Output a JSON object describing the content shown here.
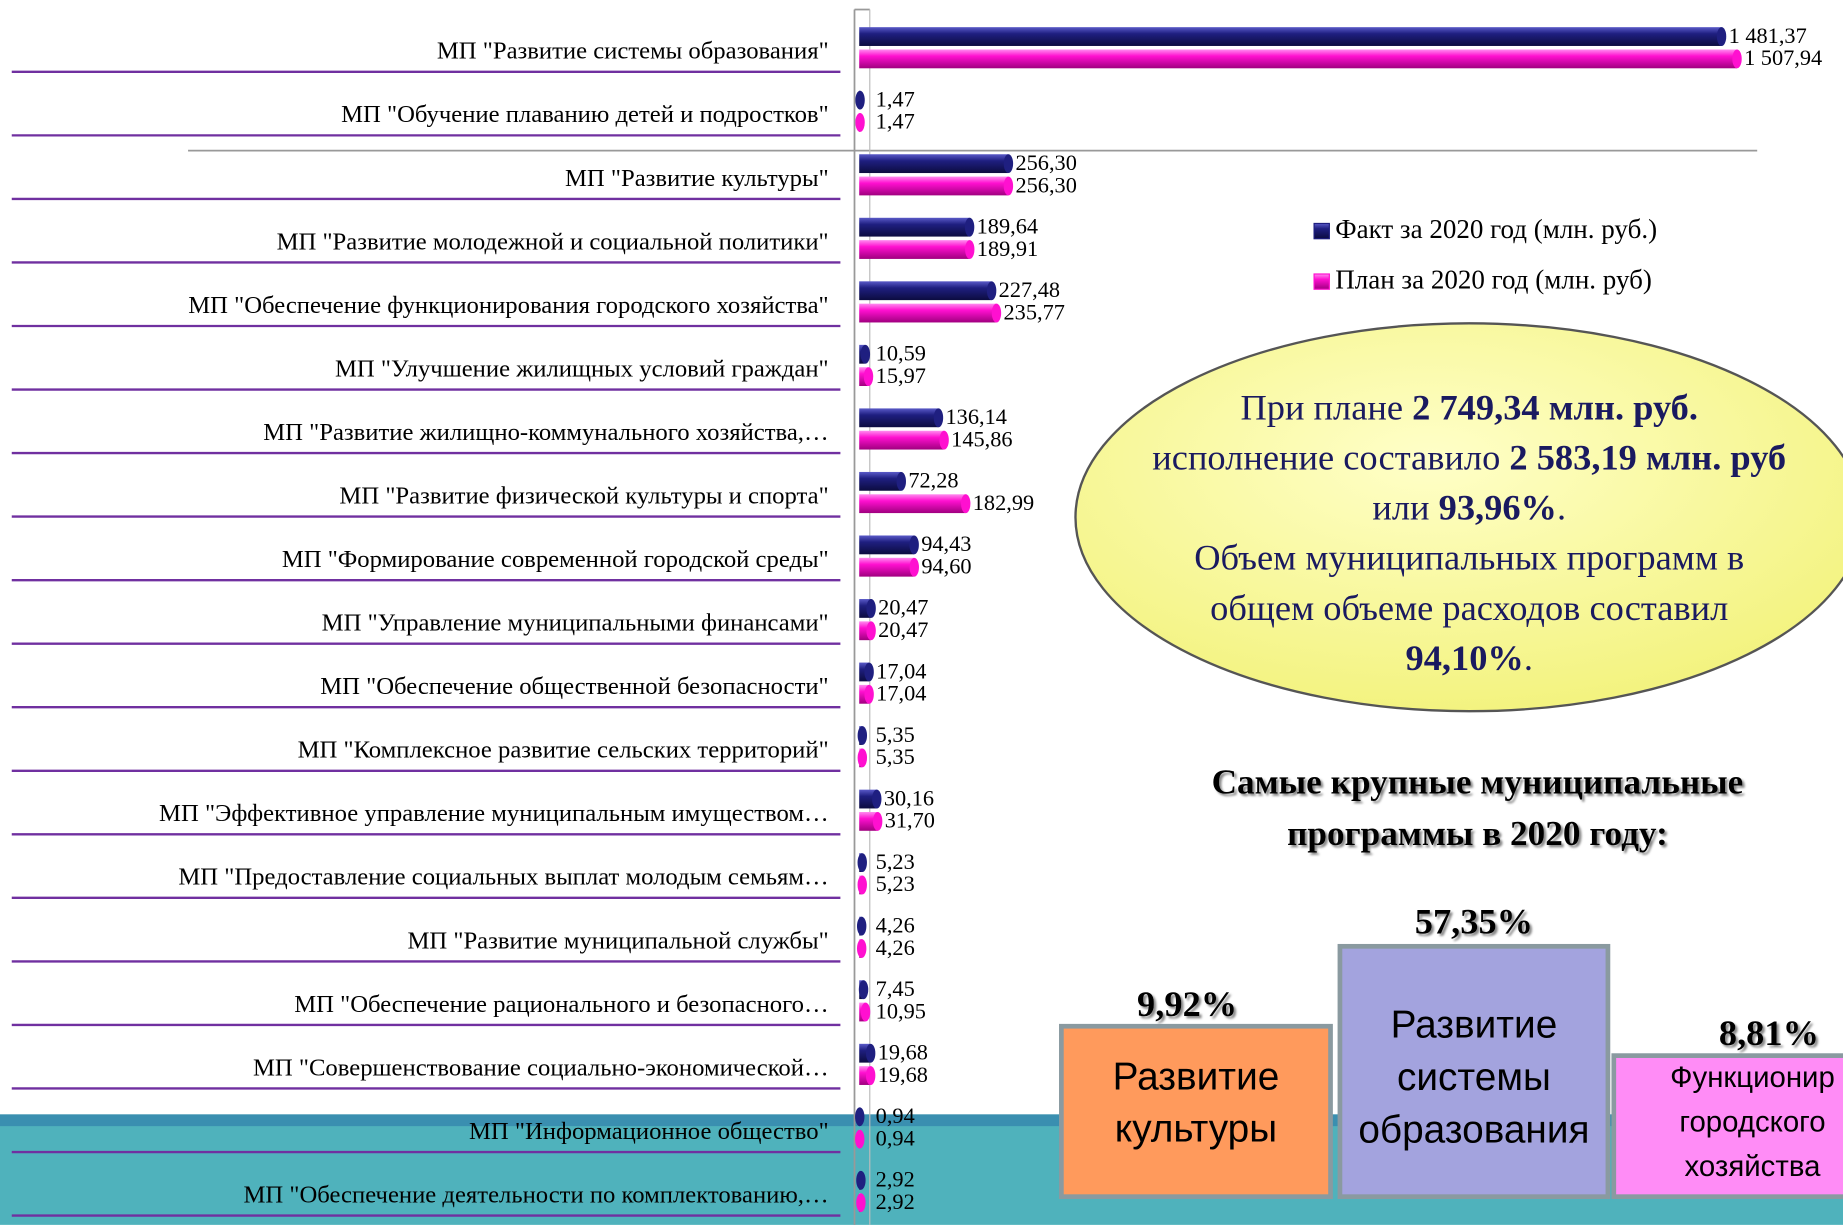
{
  "chart_data": {
    "type": "hbar",
    "categories": [
      "МП  \"Развитие системы образования\"",
      "МП \"Обучение плаванию детей и подростков\"",
      "МП \"Развитие культуры\"",
      "МП \"Развитие молодежной и социальной политики\"",
      "МП \"Обеспечение функционирования городского хозяйства\"",
      "МП \"Улучшение жилищных условий граждан\"",
      "МП     \"Развитие     жилищно-коммунального     хозяйства,…",
      "МП \"Развитие физической культуры и спорта\"",
      "МП \"Формирование современной городской среды\"",
      "МП \"Управление муниципальными финансами\"",
      "МП  \"Обеспечение общественной безопасности\"",
      "МП \"Комплексное развитие сельских территорий\"",
      "МП \"Эффективное управление муниципальным имуществом…",
      "МП \"Предоставление социальных выплат молодым семьям…",
      "МП \"Развитие муниципальной службы\"",
      "МП     \"Обеспечение     рационального     и     безопасного…",
      "МП     \"Совершенствование     социально-экономической…",
      "МП \"Информационное общество\"",
      "МП   \"Обеспечение   деятельности   по   комплектованию,…"
    ],
    "series": [
      {
        "name": "Факт за 2020 год (млн. руб.)",
        "color": "#1f1f80",
        "values": [
          1481.37,
          1.47,
          256.3,
          189.64,
          227.48,
          10.59,
          136.14,
          72.28,
          94.43,
          20.47,
          17.04,
          5.35,
          30.16,
          5.23,
          4.26,
          7.45,
          19.68,
          0.94,
          2.92
        ],
        "value_labels": [
          "1 481,37",
          "1,47",
          "256,30",
          "189,64",
          "227,48",
          "10,59",
          "136,14",
          "72,28",
          "94,43",
          "20,47",
          "17,04",
          "5,35",
          "30,16",
          "5,23",
          "4,26",
          "7,45",
          "19,68",
          "0,94",
          "2,92"
        ]
      },
      {
        "name": "План за 2020 год (млн. руб)",
        "color": "#ff10d0",
        "values": [
          1507.94,
          1.47,
          256.3,
          189.91,
          235.77,
          15.97,
          145.86,
          182.99,
          94.6,
          20.47,
          17.04,
          5.35,
          31.7,
          5.23,
          4.26,
          10.95,
          19.68,
          0.94,
          2.92
        ],
        "value_labels": [
          "1 507,94",
          "1,47",
          "256,30",
          "189,91",
          "235,77",
          "15,97",
          "145,86",
          "182,99",
          "94,60",
          "20,47",
          "17,04",
          "5,35",
          "31,70",
          "5,23",
          "4,26",
          "10,95",
          "19,68",
          "0,94",
          "2,92"
        ]
      }
    ],
    "xlim": [
      0,
      1690
    ]
  },
  "callout": {
    "lines": [
      [
        {
          "text": "При плане ",
          "bold": false
        },
        {
          "text": "2 749,34 млн. руб.",
          "bold": true
        }
      ],
      [
        {
          "text": "исполнение составило ",
          "bold": false
        },
        {
          "text": "2 583,19 млн. руб",
          "bold": true
        }
      ],
      [
        {
          "text": "или ",
          "bold": false
        },
        {
          "text": "93,96%",
          "bold": true
        },
        {
          "text": ".",
          "bold": false
        }
      ],
      [
        {
          "text": "Объем муниципальных программ в",
          "bold": false
        }
      ],
      [
        {
          "text": "общем объеме расходов составил",
          "bold": false
        }
      ],
      [
        {
          "text": "94,10%",
          "bold": true
        },
        {
          "text": ".",
          "bold": false
        }
      ]
    ]
  },
  "top_programs": {
    "title": [
      "Самые крупные муниципальные",
      "программы в 2020 году:"
    ],
    "items": [
      {
        "percent": "9,92%",
        "label": [
          "Развитие",
          "культуры"
        ]
      },
      {
        "percent": "57,35%",
        "label": [
          "Развитие",
          "системы",
          "образования"
        ]
      },
      {
        "percent": "8,81%",
        "label": [
          "Функционир",
          "городского",
          "хозяйства"
        ]
      }
    ]
  }
}
